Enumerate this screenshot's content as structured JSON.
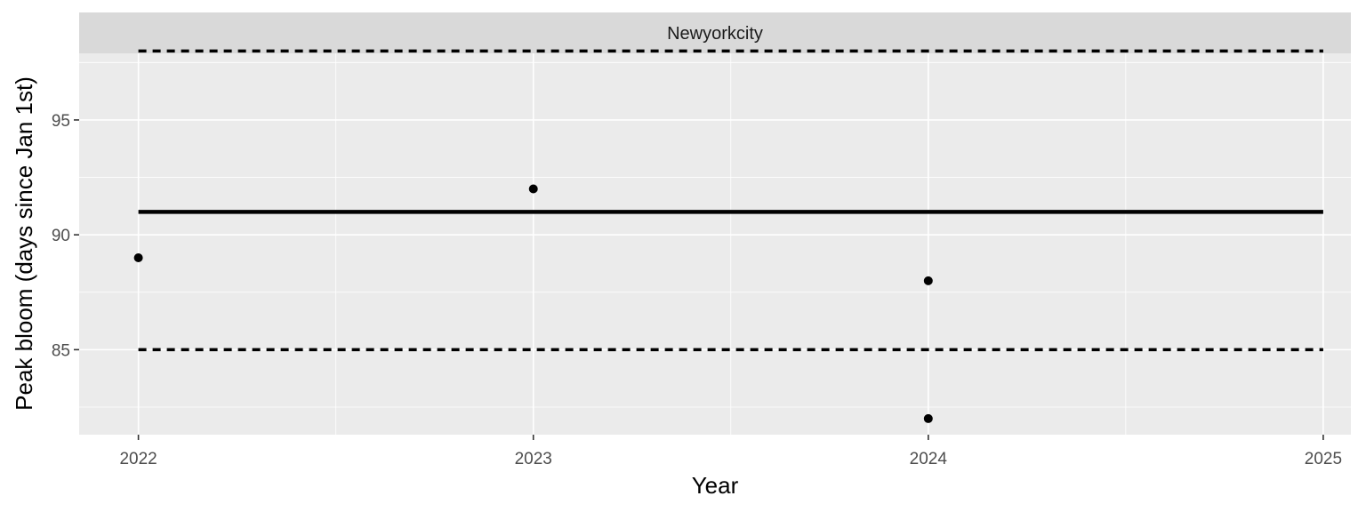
{
  "chart_data": {
    "type": "scatter",
    "facet_label": "Newyorkcity",
    "title": "",
    "xlabel": "Year",
    "ylabel": "Peak bloom (days since Jan 1st)",
    "xlim": [
      2021.85,
      2025.07
    ],
    "ylim": [
      81.3,
      97.9
    ],
    "x_ticks": [
      2022,
      2023,
      2024,
      2025
    ],
    "x_tick_labels": [
      "2022",
      "2023",
      "2024",
      "2025"
    ],
    "y_ticks": [
      85,
      90,
      95
    ],
    "y_tick_labels": [
      "85",
      "90",
      "95"
    ],
    "grid": true,
    "points": [
      {
        "x": 2022,
        "y": 89
      },
      {
        "x": 2023,
        "y": 92
      },
      {
        "x": 2024,
        "y": 88
      },
      {
        "x": 2024,
        "y": 82
      }
    ],
    "reference_lines": [
      {
        "kind": "solid",
        "x_start": 2022,
        "x_end": 2025,
        "y": 91
      },
      {
        "kind": "dashed",
        "x_start": 2022,
        "x_end": 2025,
        "y": 98
      },
      {
        "kind": "dashed",
        "x_start": 2022,
        "x_end": 2025,
        "y": 85
      }
    ],
    "colors": {
      "panel": "#ebebeb",
      "strip": "#d9d9d9",
      "grid": "#ffffff",
      "ink": "#000000",
      "tick": "#333333"
    }
  }
}
